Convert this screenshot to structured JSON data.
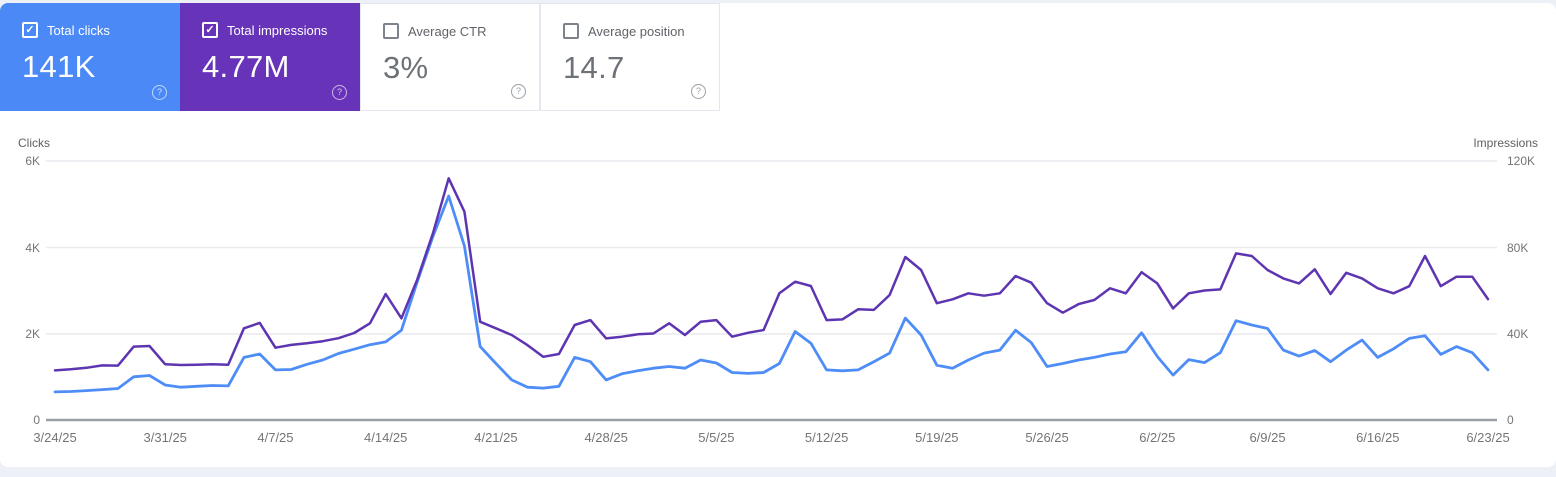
{
  "cards": [
    {
      "label": "Total clicks",
      "value": "141K",
      "checked": true,
      "color": "#4b8af6"
    },
    {
      "label": "Total impressions",
      "value": "4.77M",
      "checked": true,
      "color": "#6733b9"
    },
    {
      "label": "Average CTR",
      "value": "3%",
      "checked": false,
      "color": "#ffffff"
    },
    {
      "label": "Average position",
      "value": "14.7",
      "checked": false,
      "color": "#ffffff"
    }
  ],
  "icons": {
    "check_glyph": "✓",
    "help_glyph": "?"
  },
  "axes": {
    "left_title": "Clicks",
    "right_title": "Impressions",
    "left_ticks": [
      "6K",
      "4K",
      "2K",
      "0"
    ],
    "right_ticks": [
      "120K",
      "80K",
      "40K",
      "0"
    ]
  },
  "chart_data": {
    "type": "line",
    "title": "",
    "xlabel": "",
    "ylabel_left": "Clicks",
    "ylabel_right": "Impressions",
    "ylim_left": [
      0,
      6000
    ],
    "ylim_right": [
      0,
      120000
    ],
    "grid": true,
    "legend_position": "none",
    "x_tick_every_days": 7,
    "dates": [
      "3/24/25",
      "3/25/25",
      "3/26/25",
      "3/27/25",
      "3/28/25",
      "3/29/25",
      "3/30/25",
      "3/31/25",
      "4/1/25",
      "4/2/25",
      "4/3/25",
      "4/4/25",
      "4/5/25",
      "4/6/25",
      "4/7/25",
      "4/8/25",
      "4/9/25",
      "4/10/25",
      "4/11/25",
      "4/12/25",
      "4/13/25",
      "4/14/25",
      "4/15/25",
      "4/16/25",
      "4/17/25",
      "4/18/25",
      "4/19/25",
      "4/20/25",
      "4/21/25",
      "4/22/25",
      "4/23/25",
      "4/24/25",
      "4/25/25",
      "4/26/25",
      "4/27/25",
      "4/28/25",
      "4/29/25",
      "4/30/25",
      "5/1/25",
      "5/2/25",
      "5/3/25",
      "5/4/25",
      "5/5/25",
      "5/6/25",
      "5/7/25",
      "5/8/25",
      "5/9/25",
      "5/10/25",
      "5/11/25",
      "5/12/25",
      "5/13/25",
      "5/14/25",
      "5/15/25",
      "5/16/25",
      "5/17/25",
      "5/18/25",
      "5/19/25",
      "5/20/25",
      "5/21/25",
      "5/22/25",
      "5/23/25",
      "5/24/25",
      "5/25/25",
      "5/26/25",
      "5/27/25",
      "5/28/25",
      "5/29/25",
      "5/30/25",
      "5/31/25",
      "6/1/25",
      "6/2/25",
      "6/3/25",
      "6/4/25",
      "6/5/25",
      "6/6/25",
      "6/7/25",
      "6/8/25",
      "6/9/25",
      "6/10/25",
      "6/11/25",
      "6/12/25",
      "6/13/25",
      "6/14/25",
      "6/15/25",
      "6/16/25",
      "6/17/25",
      "6/18/25",
      "6/19/25",
      "6/20/25",
      "6/21/25",
      "6/22/25",
      "6/23/25"
    ],
    "series": [
      {
        "name": "Total clicks",
        "axis": "left",
        "color": "#4e8df7",
        "values": [
          650,
          660,
          680,
          705,
          730,
          1000,
          1030,
          810,
          760,
          780,
          800,
          790,
          1450,
          1530,
          1160,
          1170,
          1290,
          1390,
          1540,
          1640,
          1745,
          1810,
          2080,
          3200,
          4250,
          5190,
          4030,
          1700,
          1310,
          930,
          760,
          740,
          780,
          1450,
          1350,
          930,
          1070,
          1140,
          1200,
          1240,
          1200,
          1390,
          1320,
          1100,
          1080,
          1100,
          1310,
          2050,
          1780,
          1160,
          1140,
          1160,
          1350,
          1550,
          2360,
          1970,
          1270,
          1200,
          1390,
          1550,
          1620,
          2080,
          1790,
          1240,
          1310,
          1390,
          1450,
          1530,
          1580,
          2020,
          1470,
          1040,
          1400,
          1330,
          1560,
          2300,
          2200,
          2120,
          1620,
          1480,
          1610,
          1350,
          1620,
          1850,
          1450,
          1650,
          1890,
          1950,
          1520,
          1700,
          1560,
          1160
        ]
      },
      {
        "name": "Total impressions",
        "axis": "right",
        "color": "#5e35b1",
        "values": [
          23000,
          23500,
          24200,
          25300,
          25200,
          34000,
          34300,
          25800,
          25500,
          25600,
          25800,
          25600,
          42500,
          45000,
          33500,
          34800,
          35600,
          36500,
          37900,
          40300,
          44800,
          58400,
          47100,
          65000,
          86500,
          112000,
          96500,
          45500,
          42500,
          39400,
          34700,
          29300,
          30600,
          44000,
          46300,
          37800,
          38600,
          39700,
          40100,
          44800,
          39400,
          45500,
          46300,
          38600,
          40400,
          41700,
          58700,
          64100,
          62100,
          46300,
          46600,
          51300,
          51000,
          57900,
          75500,
          69500,
          54100,
          55900,
          58700,
          57600,
          58700,
          66700,
          63600,
          54100,
          49700,
          53700,
          55600,
          61000,
          58700,
          68500,
          63300,
          51700,
          58700,
          60000,
          60500,
          77200,
          76000,
          69500,
          65600,
          63300,
          69800,
          58400,
          68200,
          65600,
          61000,
          58700,
          62000,
          76000,
          62000,
          66400,
          66400,
          56000
        ]
      }
    ]
  }
}
